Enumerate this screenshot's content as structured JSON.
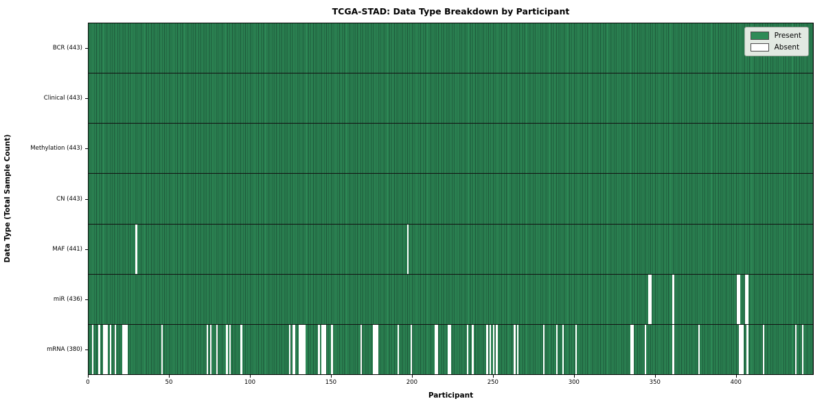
{
  "chart_data": {
    "type": "heatmap",
    "title": "TCGA-STAD: Data Type Breakdown by Participant",
    "xlabel": "Participant",
    "ylabel": "Data Type (Total Sample Count)",
    "n_participants": 443,
    "x_axis_max": 448,
    "x_ticks": [
      0,
      50,
      100,
      150,
      200,
      250,
      300,
      350,
      400
    ],
    "grid": "row-separators",
    "legend": {
      "position": "upper-right",
      "entries": [
        {
          "label": "Present",
          "color": "#2e8b57"
        },
        {
          "label": "Absent",
          "color": "#ffffff"
        }
      ]
    },
    "colors": {
      "present": "#2e8b57",
      "present_edge": "#1b5236",
      "absent": "#ffffff",
      "separator": "#111111"
    },
    "rows": [
      {
        "label": "BCR (443)",
        "data_type": "BCR",
        "present_count": 443,
        "absent_participants": []
      },
      {
        "label": "Clinical (443)",
        "data_type": "Clinical",
        "present_count": 443,
        "absent_participants": []
      },
      {
        "label": "Methylation (443)",
        "data_type": "Methylation",
        "present_count": 443,
        "absent_participants": []
      },
      {
        "label": "CN (443)",
        "data_type": "CN",
        "present_count": 443,
        "absent_participants": []
      },
      {
        "label": "MAF (441)",
        "data_type": "MAF",
        "present_count": 441,
        "absent_participants": [
          29,
          197
        ]
      },
      {
        "label": "miR (436)",
        "data_type": "miR",
        "present_count": 436,
        "absent_participants": [
          346,
          347,
          361,
          401,
          402,
          406,
          407
        ]
      },
      {
        "label": "mRNA (380)",
        "data_type": "mRNA",
        "present_count": 380,
        "absent_participants": [
          2,
          6,
          9,
          10,
          11,
          13,
          16,
          21,
          22,
          23,
          45,
          73,
          75,
          79,
          85,
          87,
          94,
          124,
          126,
          127,
          130,
          131,
          132,
          133,
          142,
          144,
          145,
          146,
          150,
          168,
          176,
          177,
          178,
          191,
          199,
          214,
          215,
          222,
          223,
          234,
          237,
          246,
          248,
          250,
          252,
          263,
          265,
          281,
          289,
          293,
          301,
          335,
          336,
          344,
          361,
          377,
          402,
          403,
          404,
          407,
          417,
          437,
          441
        ]
      }
    ]
  }
}
